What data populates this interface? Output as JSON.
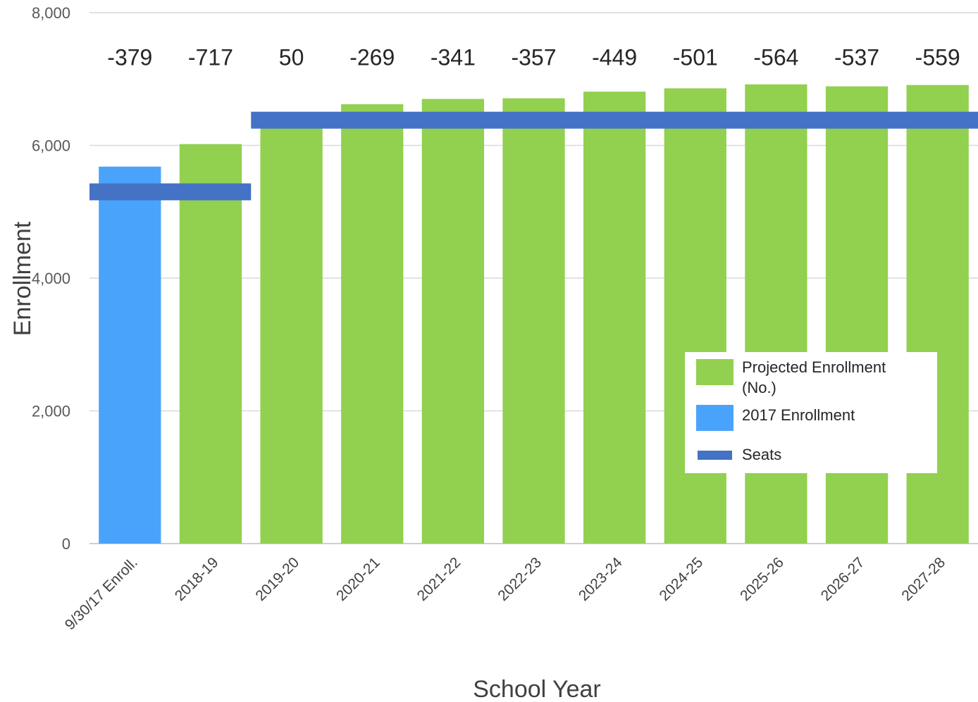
{
  "chart_data": {
    "type": "bar",
    "title": "",
    "xlabel": "School Year",
    "ylabel": "Enrollment",
    "ylim": [
      0,
      8000
    ],
    "yticks": [
      0,
      2000,
      4000,
      6000,
      8000
    ],
    "ytick_labels": [
      "0",
      "2,000",
      "4,000",
      "6,000",
      "8,000"
    ],
    "grid": true,
    "legend_position": "right",
    "categories": [
      "9/30/17 Enroll.",
      "2018-19",
      "2019-20",
      "2020-21",
      "2021-22",
      "2022-23",
      "2023-24",
      "2024-25",
      "2025-26",
      "2026-27",
      "2027-28"
    ],
    "series": [
      {
        "name": "Projected Enrollment (No.)",
        "legend_lines": [
          "Projected Enrollment",
          "(No.)"
        ],
        "kind": "bar",
        "color": "#92d050",
        "values": [
          null,
          6020,
          6430,
          6620,
          6700,
          6710,
          6810,
          6860,
          6920,
          6890,
          6910
        ]
      },
      {
        "name": "2017 Enrollment",
        "legend_lines": [
          "2017 Enrollment"
        ],
        "kind": "bar",
        "color": "#4aa3fa",
        "values": [
          5680,
          null,
          null,
          null,
          null,
          null,
          null,
          null,
          null,
          null,
          null
        ]
      },
      {
        "name": "Seats",
        "legend_lines": [
          "Seats"
        ],
        "kind": "step-line",
        "color": "#4472c4",
        "values": [
          5300,
          5300,
          6380,
          6380,
          6380,
          6380,
          6380,
          6380,
          6380,
          6380,
          6380
        ]
      }
    ],
    "data_labels": [
      "-379",
      "-717",
      "50",
      "-269",
      "-341",
      "-357",
      "-449",
      "-501",
      "-564",
      "-537",
      "-559"
    ]
  }
}
